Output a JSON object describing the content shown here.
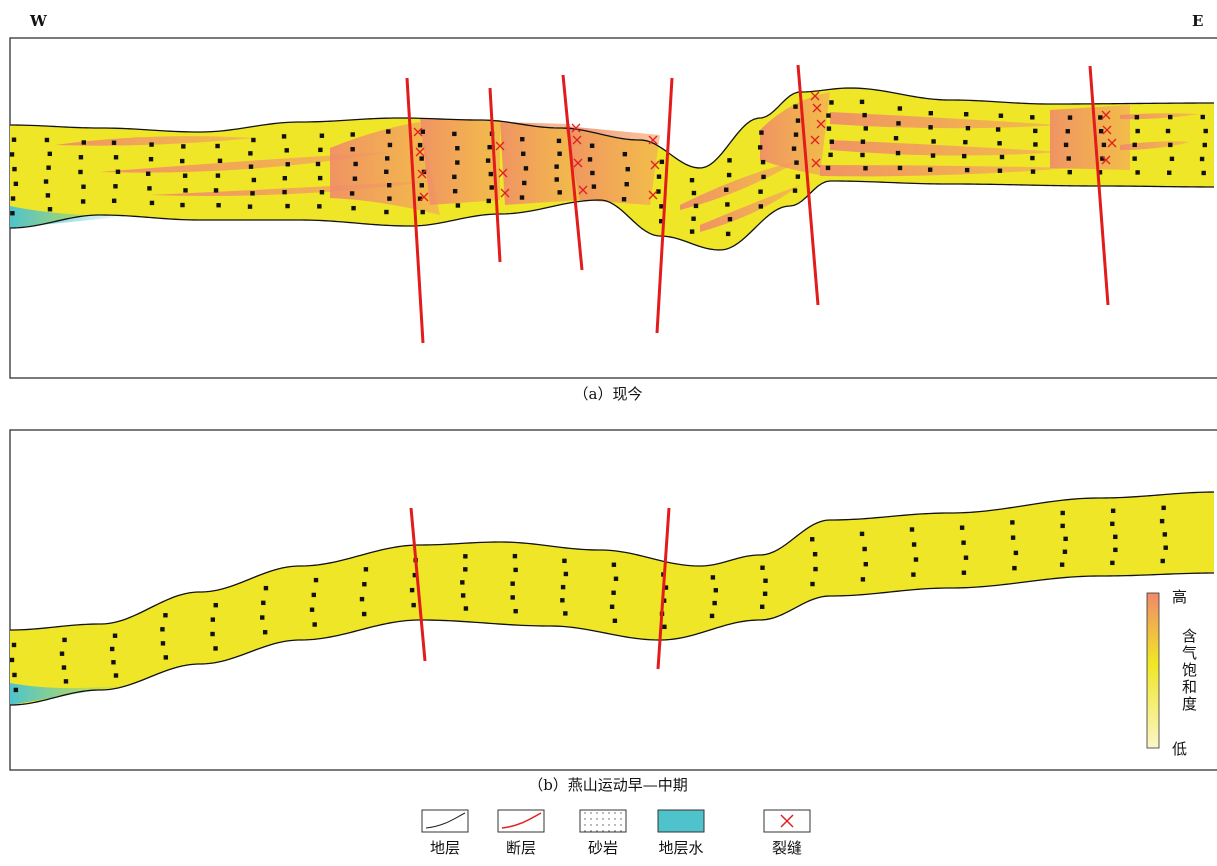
{
  "header": {
    "west": "W",
    "east": "E"
  },
  "panels": [
    {
      "caption": "（a）现今"
    },
    {
      "caption": "（b）燕山运动早—中期"
    }
  ],
  "colorbar": {
    "high": "高",
    "title": "含气饱和度",
    "low": "低"
  },
  "legend": [
    {
      "label": "地层"
    },
    {
      "label": "断层"
    },
    {
      "label": "砂岩"
    },
    {
      "label": "地层水"
    },
    {
      "label": "裂缝"
    }
  ]
}
